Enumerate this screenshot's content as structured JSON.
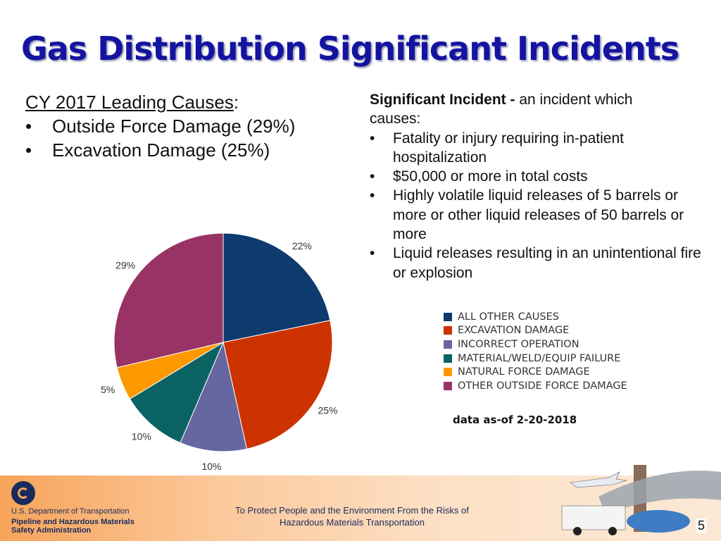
{
  "title": "Gas Distribution Significant Incidents",
  "causes": {
    "heading": "CY 2017 Leading Causes",
    "colon": ":",
    "bullet": "•",
    "items": [
      {
        "label": "Outside Force Damage",
        "pct": "(29%)"
      },
      {
        "label": "Excavation Damage",
        "pct": "(25%)"
      }
    ]
  },
  "definition": {
    "term": "Significant Incident -",
    "intro_first": " an incident which",
    "intro_rest": "causes:",
    "items": [
      "Fatality or injury requiring in-patient hospitalization",
      "$50,000 or more in total costs",
      "Highly volatile liquid releases of 5 barrels or more or other liquid releases of 50 barrels or more",
      "Liquid releases resulting in an unintentional fire or explosion"
    ]
  },
  "chart_data": {
    "type": "pie",
    "categories": [
      "ALL OTHER CAUSES",
      "EXCAVATION DAMAGE",
      "INCORRECT OPERATION",
      "MATERIAL/WELD/EQUIP FAILURE",
      "NATURAL FORCE DAMAGE",
      "OTHER OUTSIDE FORCE DAMAGE"
    ],
    "values": [
      22,
      25,
      10,
      10,
      5,
      29
    ],
    "labels": [
      "22%",
      "25%",
      "10%",
      "10%",
      "5%",
      "29%"
    ],
    "colors": [
      "#0d3b6e",
      "#cc3300",
      "#6666a0",
      "#0b6262",
      "#ff9900",
      "#993366"
    ],
    "legend_placement": "right"
  },
  "asof": "data as-of 2-20-2018",
  "footer": {
    "dept": "U.S. Department of Transportation",
    "agency_line1": "Pipeline and Hazardous Materials",
    "agency_line2": "Safety Administration",
    "mission_line1": "To Protect People and the Environment From the Risks of",
    "mission_line2": "Hazardous Materials Transportation",
    "page_number": "5"
  }
}
